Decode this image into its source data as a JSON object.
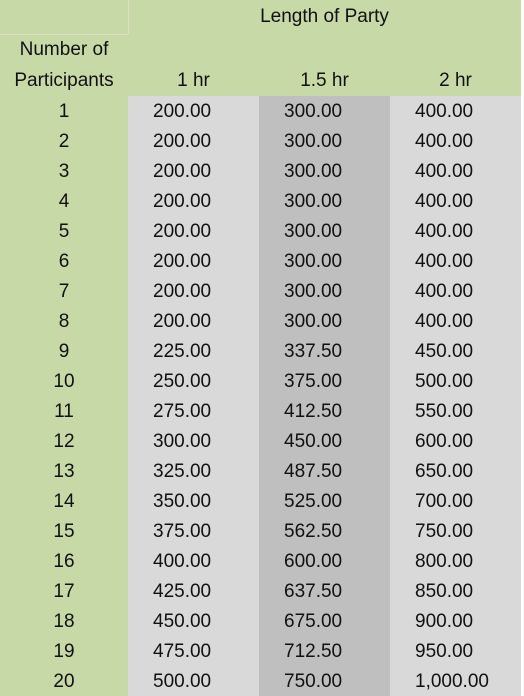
{
  "header": {
    "group_title": "Length of Party",
    "row_header_line1": "Number of",
    "row_header_line2": "Participants",
    "columns": [
      "1 hr",
      "1.5 hr",
      "2 hr"
    ]
  },
  "rows": [
    {
      "participants": "1",
      "hr1": "200.00",
      "hr15": "300.00",
      "hr2": "400.00"
    },
    {
      "participants": "2",
      "hr1": "200.00",
      "hr15": "300.00",
      "hr2": "400.00"
    },
    {
      "participants": "3",
      "hr1": "200.00",
      "hr15": "300.00",
      "hr2": "400.00"
    },
    {
      "participants": "4",
      "hr1": "200.00",
      "hr15": "300.00",
      "hr2": "400.00"
    },
    {
      "participants": "5",
      "hr1": "200.00",
      "hr15": "300.00",
      "hr2": "400.00"
    },
    {
      "participants": "6",
      "hr1": "200.00",
      "hr15": "300.00",
      "hr2": "400.00"
    },
    {
      "participants": "7",
      "hr1": "200.00",
      "hr15": "300.00",
      "hr2": "400.00"
    },
    {
      "participants": "8",
      "hr1": "200.00",
      "hr15": "300.00",
      "hr2": "400.00"
    },
    {
      "participants": "9",
      "hr1": "225.00",
      "hr15": "337.50",
      "hr2": "450.00"
    },
    {
      "participants": "10",
      "hr1": "250.00",
      "hr15": "375.00",
      "hr2": "500.00"
    },
    {
      "participants": "11",
      "hr1": "275.00",
      "hr15": "412.50",
      "hr2": "550.00"
    },
    {
      "participants": "12",
      "hr1": "300.00",
      "hr15": "450.00",
      "hr2": "600.00"
    },
    {
      "participants": "13",
      "hr1": "325.00",
      "hr15": "487.50",
      "hr2": "650.00"
    },
    {
      "participants": "14",
      "hr1": "350.00",
      "hr15": "525.00",
      "hr2": "700.00"
    },
    {
      "participants": "15",
      "hr1": "375.00",
      "hr15": "562.50",
      "hr2": "750.00"
    },
    {
      "participants": "16",
      "hr1": "400.00",
      "hr15": "600.00",
      "hr2": "800.00"
    },
    {
      "participants": "17",
      "hr1": "425.00",
      "hr15": "637.50",
      "hr2": "850.00"
    },
    {
      "participants": "18",
      "hr1": "450.00",
      "hr15": "675.00",
      "hr2": "900.00"
    },
    {
      "participants": "19",
      "hr1": "475.00",
      "hr15": "712.50",
      "hr2": "950.00"
    },
    {
      "participants": "20",
      "hr1": "500.00",
      "hr15": "750.00",
      "hr2": "1,000.00"
    }
  ],
  "colors": {
    "header_green": "#c7d9a6",
    "column_light_gray": "#d9d9d9",
    "column_mid_gray": "#bfbfbf"
  }
}
